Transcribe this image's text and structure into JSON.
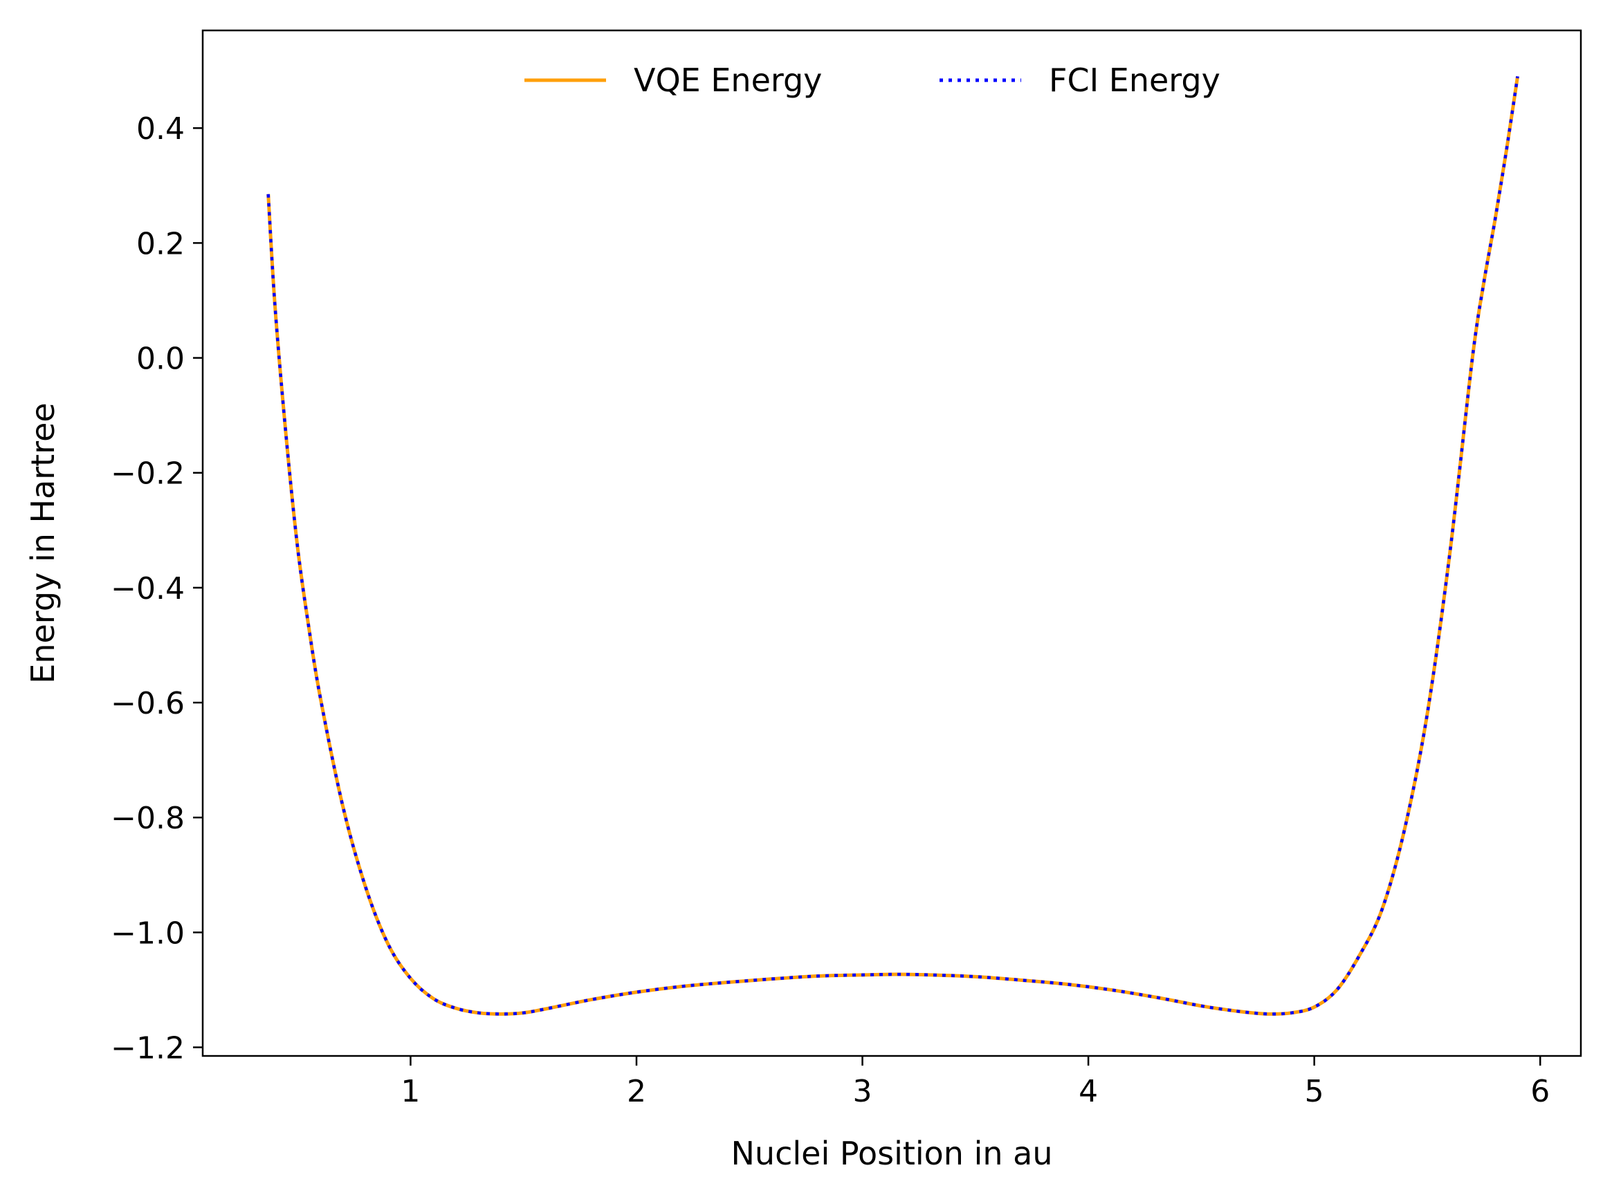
{
  "chart_data": {
    "type": "line",
    "title": "",
    "xlabel": "Nuclei Position in au",
    "ylabel": "Energy in Hartree",
    "xlim": [
      0.08,
      6.18
    ],
    "ylim": [
      -1.215,
      0.57
    ],
    "x_ticks": [
      1,
      2,
      3,
      4,
      5,
      6
    ],
    "x_tick_labels": [
      "1",
      "2",
      "3",
      "4",
      "5",
      "6"
    ],
    "y_ticks": [
      0.4,
      0.2,
      0.0,
      -0.2,
      -0.4,
      -0.6,
      -0.8,
      -1.0,
      -1.2
    ],
    "y_tick_labels": [
      "0.4",
      "0.2",
      "0.0",
      "−0.2",
      "−0.4",
      "−0.6",
      "−0.8",
      "−1.0",
      "−1.2"
    ],
    "grid": false,
    "legend": {
      "position": "top-center",
      "frame": false,
      "columns": 2
    },
    "x": [
      0.37,
      0.4,
      0.45,
      0.5,
      0.55,
      0.6,
      0.7,
      0.8,
      0.9,
      1.0,
      1.1,
      1.2,
      1.3,
      1.4,
      1.5,
      1.6,
      1.8,
      2.0,
      2.2,
      2.4,
      2.6,
      2.8,
      3.0,
      3.15,
      3.3,
      3.5,
      3.7,
      3.9,
      4.1,
      4.3,
      4.5,
      4.6,
      4.7,
      4.8,
      4.9,
      5.0,
      5.1,
      5.2,
      5.3,
      5.4,
      5.5,
      5.6,
      5.7,
      5.75,
      5.8,
      5.85,
      5.9
    ],
    "series": [
      {
        "name": "VQE Energy",
        "color": "#ff9f0a",
        "style": "solid",
        "values": [
          0.285,
          0.09,
          -0.14,
          -0.33,
          -0.47,
          -0.59,
          -0.78,
          -0.92,
          -1.02,
          -1.08,
          -1.115,
          -1.132,
          -1.14,
          -1.142,
          -1.14,
          -1.133,
          -1.117,
          -1.104,
          -1.094,
          -1.087,
          -1.081,
          -1.076,
          -1.074,
          -1.073,
          -1.074,
          -1.077,
          -1.083,
          -1.09,
          -1.1,
          -1.113,
          -1.128,
          -1.134,
          -1.139,
          -1.142,
          -1.14,
          -1.13,
          -1.1,
          -1.04,
          -0.96,
          -0.82,
          -0.62,
          -0.34,
          0.0,
          0.13,
          0.24,
          0.36,
          0.49
        ]
      },
      {
        "name": "FCI Energy",
        "color": "#0000ff",
        "style": "dotted",
        "values": [
          0.285,
          0.09,
          -0.14,
          -0.33,
          -0.47,
          -0.59,
          -0.78,
          -0.92,
          -1.02,
          -1.08,
          -1.115,
          -1.132,
          -1.14,
          -1.142,
          -1.14,
          -1.133,
          -1.117,
          -1.104,
          -1.094,
          -1.087,
          -1.081,
          -1.076,
          -1.074,
          -1.073,
          -1.074,
          -1.077,
          -1.083,
          -1.09,
          -1.1,
          -1.113,
          -1.128,
          -1.134,
          -1.139,
          -1.142,
          -1.14,
          -1.13,
          -1.1,
          -1.04,
          -0.96,
          -0.82,
          -0.62,
          -0.34,
          0.0,
          0.13,
          0.24,
          0.36,
          0.49
        ]
      }
    ]
  }
}
